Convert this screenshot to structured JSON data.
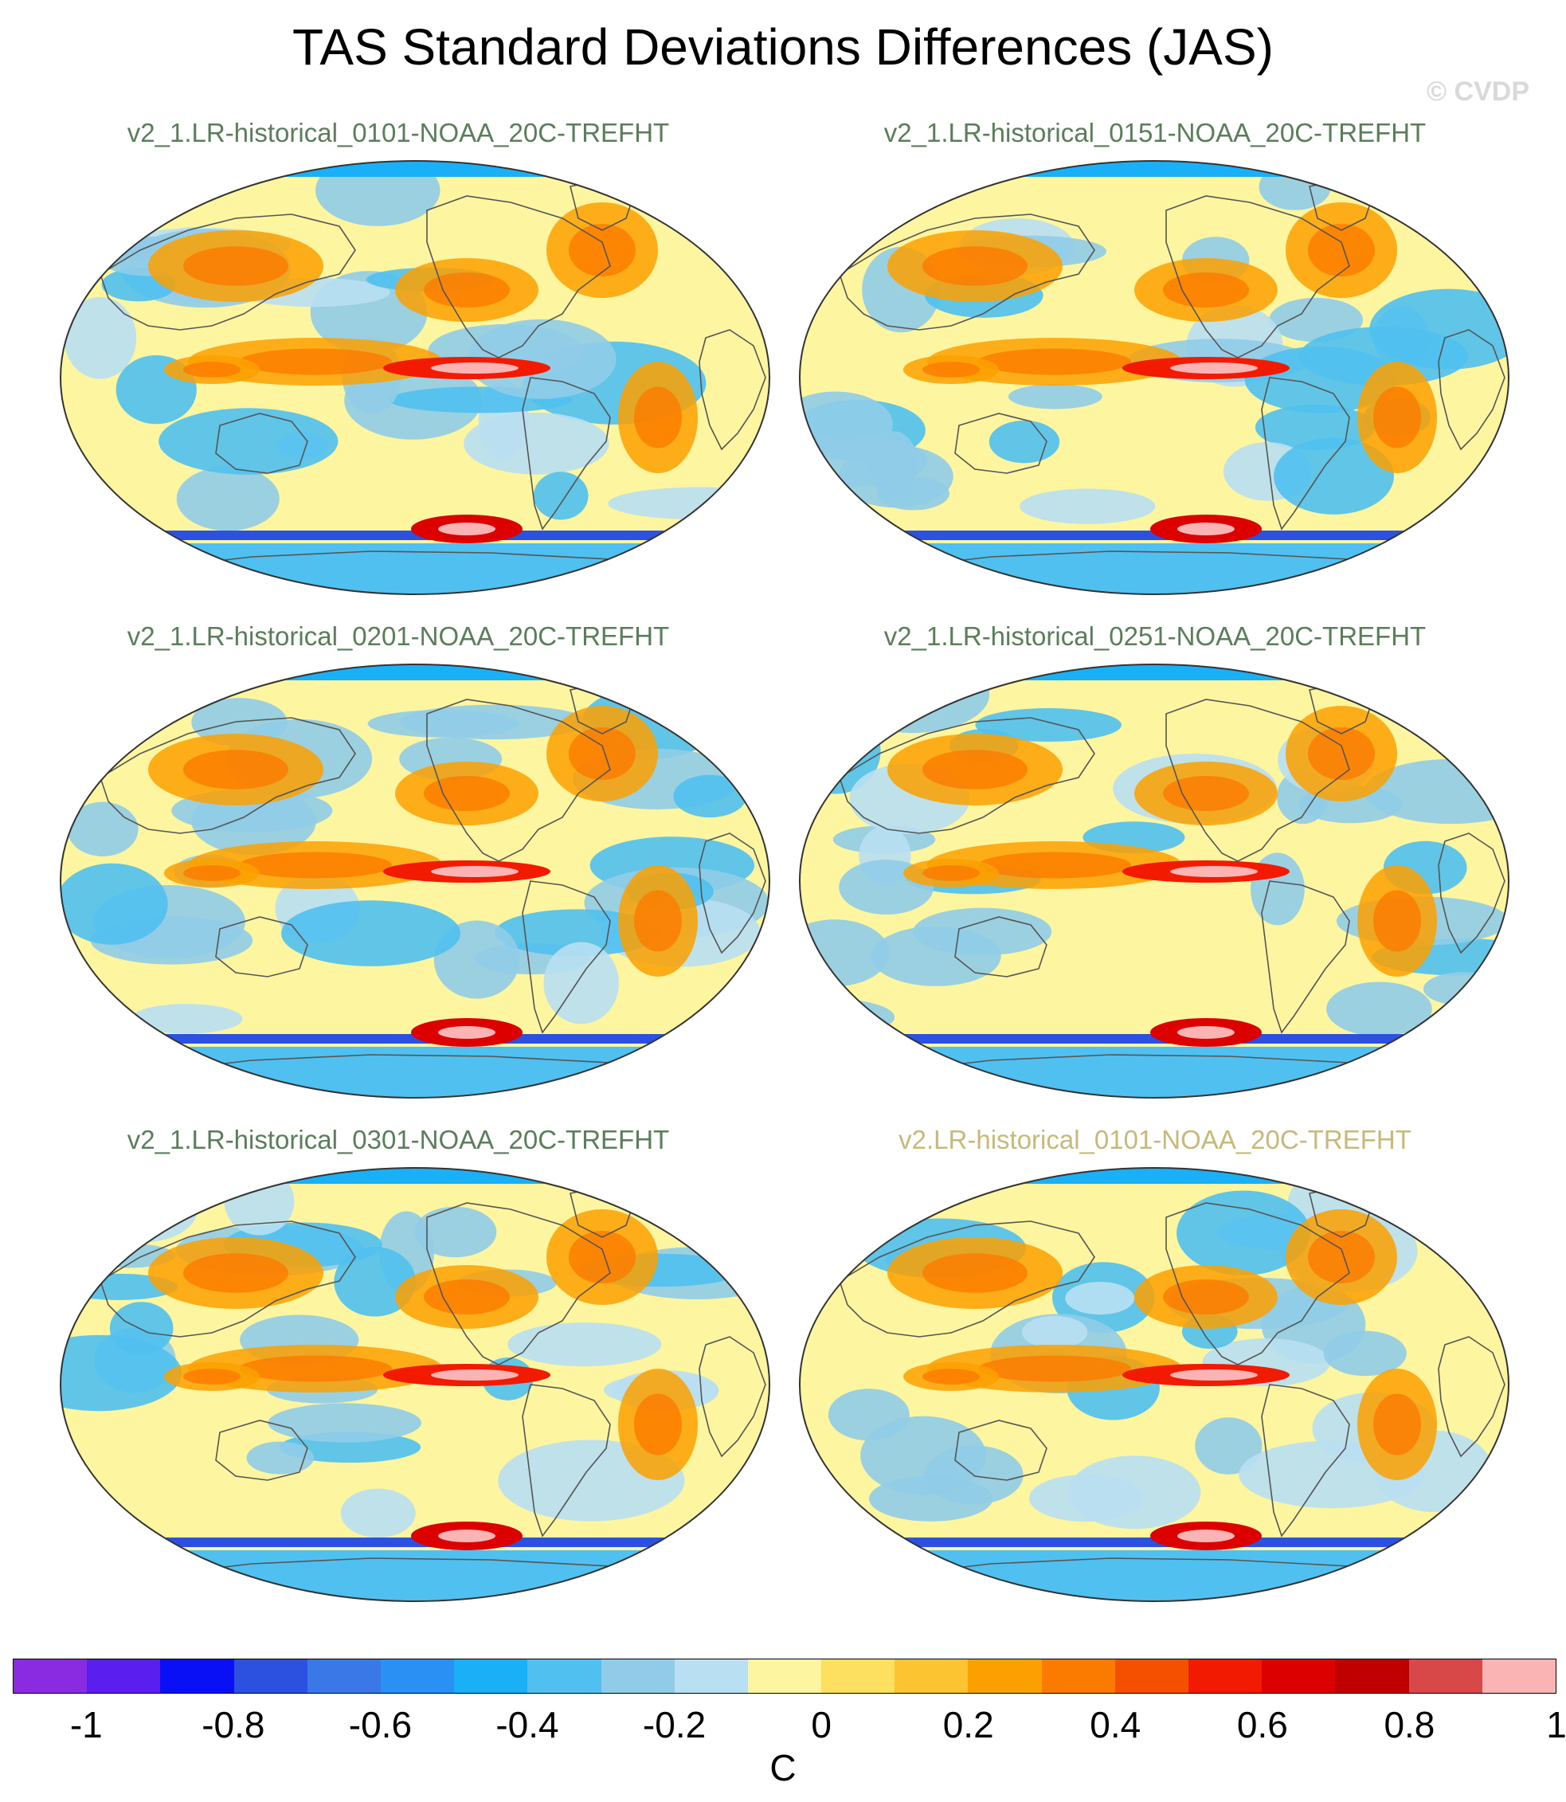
{
  "title": "TAS Standard Deviations Differences (JAS)",
  "copyright": "© CVDP",
  "panels": [
    {
      "label": "v2_1.LR-historical_0101-NOAA_20C-TREFHT",
      "label_color": "#5a7d5a"
    },
    {
      "label": "v2_1.LR-historical_0151-NOAA_20C-TREFHT",
      "label_color": "#5a7d5a"
    },
    {
      "label": "v2_1.LR-historical_0201-NOAA_20C-TREFHT",
      "label_color": "#5a7d5a"
    },
    {
      "label": "v2_1.LR-historical_0251-NOAA_20C-TREFHT",
      "label_color": "#5a7d5a"
    },
    {
      "label": "v2_1.LR-historical_0301-NOAA_20C-TREFHT",
      "label_color": "#5a7d5a"
    },
    {
      "label": "v2.LR-historical_0101-NOAA_20C-TREFHT",
      "label_color": "#c8b87a"
    }
  ],
  "colorbar": {
    "unit": "C",
    "ticks": [
      "-1",
      "-0.8",
      "-0.6",
      "-0.4",
      "-0.2",
      "0",
      "0.2",
      "0.4",
      "0.6",
      "0.8",
      "1"
    ],
    "colors": [
      "#8a2be2",
      "#5a1fef",
      "#0a10f5",
      "#2c50e0",
      "#3a78e8",
      "#2a90f4",
      "#1ab0f8",
      "#50c0f0",
      "#90cce8",
      "#b8dff2",
      "#fdf5a0",
      "#fde060",
      "#fcc430",
      "#fca000",
      "#fb7a00",
      "#f55000",
      "#f21a00",
      "#dd0000",
      "#c00000",
      "#d84848",
      "#fab4b4"
    ]
  }
}
